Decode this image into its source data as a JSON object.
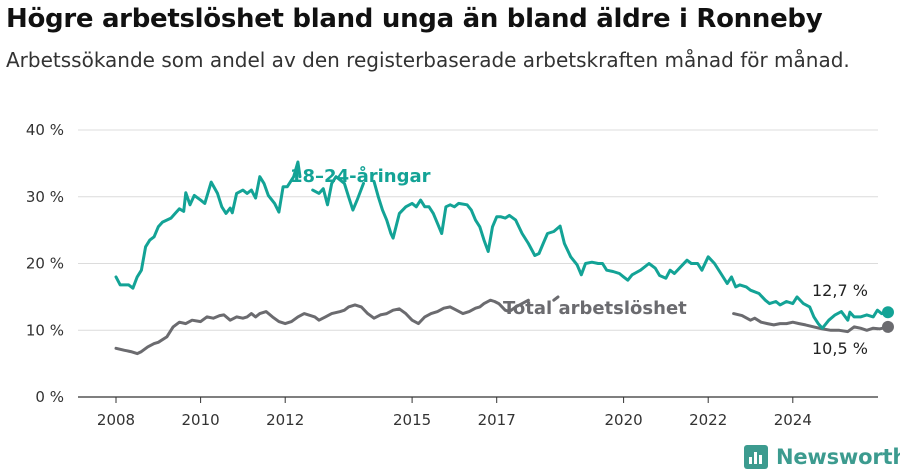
{
  "header": {
    "title": "Högre arbetslöshet bland unga än bland äldre i Ronneby",
    "subtitle": "Arbetssökande som andel av den registerbaserade arbetskraften månad för månad."
  },
  "brand": {
    "name": "Newsworthy",
    "color": "#3c9b8f",
    "icon": "bar-chart-icon"
  },
  "chart_data": {
    "type": "line",
    "ylim": [
      0,
      40
    ],
    "xlim": [
      2008,
      2025
    ],
    "y_ticks": [
      0,
      10,
      20,
      30,
      40
    ],
    "y_tick_labels": [
      "0 %",
      "10 %",
      "20 %",
      "30 %",
      "40 %"
    ],
    "x_ticks": [
      2008,
      2010,
      2012,
      2015,
      2017,
      2020,
      2022,
      2024
    ],
    "x_tick_labels": [
      "2008",
      "2010",
      "2012",
      "2015",
      "2017",
      "2020",
      "2022",
      "2024"
    ],
    "grid": true,
    "series": [
      {
        "name": "18–24-åringar",
        "color": "#13a396",
        "end_label": "12,7 %",
        "points": [
          [
            2008.0,
            18.0
          ],
          [
            2008.1,
            16.8
          ],
          [
            2008.3,
            16.8
          ],
          [
            2008.4,
            16.3
          ],
          [
            2008.5,
            18.0
          ],
          [
            2008.6,
            19.0
          ],
          [
            2008.7,
            22.5
          ],
          [
            2008.8,
            23.5
          ],
          [
            2008.9,
            24.0
          ],
          [
            2009.0,
            25.5
          ],
          [
            2009.1,
            26.2
          ],
          [
            2009.3,
            26.8
          ],
          [
            2009.4,
            27.5
          ],
          [
            2009.5,
            28.2
          ],
          [
            2009.6,
            27.8
          ],
          [
            2009.65,
            30.6
          ],
          [
            2009.75,
            28.8
          ],
          [
            2009.85,
            30.2
          ],
          [
            2010.0,
            29.5
          ],
          [
            2010.1,
            29.0
          ],
          [
            2010.25,
            32.2
          ],
          [
            2010.4,
            30.5
          ],
          [
            2010.5,
            28.5
          ],
          [
            2010.6,
            27.5
          ],
          [
            2010.7,
            28.3
          ],
          [
            2010.75,
            27.6
          ],
          [
            2010.85,
            30.5
          ],
          [
            2011.0,
            31.0
          ],
          [
            2011.1,
            30.5
          ],
          [
            2011.2,
            31.0
          ],
          [
            2011.3,
            29.8
          ],
          [
            2011.4,
            33.0
          ],
          [
            2011.5,
            32.0
          ],
          [
            2011.6,
            30.2
          ],
          [
            2011.75,
            29.0
          ],
          [
            2011.85,
            27.7
          ],
          [
            2011.95,
            31.5
          ],
          [
            2012.05,
            31.5
          ],
          [
            2012.2,
            33.0
          ],
          [
            2012.3,
            35.2
          ],
          [
            2012.35,
            33.0
          ]
        ],
        "points_2": [
          [
            2012.65,
            31.0
          ],
          [
            2012.8,
            30.5
          ],
          [
            2012.9,
            31.2
          ],
          [
            2013.0,
            28.8
          ],
          [
            2013.1,
            32.0
          ],
          [
            2013.2,
            33.0
          ],
          [
            2013.4,
            32.0
          ],
          [
            2013.5,
            30.0
          ],
          [
            2013.6,
            28.0
          ],
          [
            2013.7,
            29.5
          ],
          [
            2013.85,
            32.0
          ]
        ],
        "points_3": [
          [
            2014.1,
            32.3
          ],
          [
            2014.2,
            30.0
          ],
          [
            2014.3,
            28.0
          ],
          [
            2014.4,
            26.5
          ],
          [
            2014.5,
            24.5
          ],
          [
            2014.55,
            23.8
          ],
          [
            2014.7,
            27.5
          ],
          [
            2014.85,
            28.5
          ],
          [
            2015.0,
            29.0
          ],
          [
            2015.1,
            28.5
          ],
          [
            2015.2,
            29.5
          ],
          [
            2015.3,
            28.5
          ],
          [
            2015.4,
            28.5
          ],
          [
            2015.5,
            27.5
          ],
          [
            2015.6,
            26.0
          ],
          [
            2015.7,
            24.5
          ],
          [
            2015.8,
            28.5
          ],
          [
            2015.9,
            28.8
          ],
          [
            2016.0,
            28.5
          ],
          [
            2016.1,
            29.0
          ],
          [
            2016.3,
            28.8
          ],
          [
            2016.4,
            28.0
          ],
          [
            2016.5,
            26.5
          ],
          [
            2016.6,
            25.5
          ],
          [
            2016.7,
            23.5
          ],
          [
            2016.8,
            21.8
          ],
          [
            2016.9,
            25.5
          ],
          [
            2017.0,
            27.0
          ],
          [
            2017.1,
            27.0
          ],
          [
            2017.2,
            26.8
          ],
          [
            2017.3,
            27.2
          ],
          [
            2017.45,
            26.5
          ],
          [
            2017.6,
            24.5
          ],
          [
            2017.75,
            23.0
          ],
          [
            2017.9,
            21.2
          ],
          [
            2018.0,
            21.5
          ],
          [
            2018.1,
            23.0
          ],
          [
            2018.2,
            24.5
          ],
          [
            2018.35,
            24.8
          ],
          [
            2018.5,
            25.6
          ],
          [
            2018.6,
            23.0
          ],
          [
            2018.75,
            21.0
          ],
          [
            2018.9,
            19.8
          ],
          [
            2019.0,
            18.3
          ],
          [
            2019.1,
            20.0
          ],
          [
            2019.25,
            20.2
          ],
          [
            2019.4,
            20.0
          ],
          [
            2019.5,
            20.0
          ],
          [
            2019.6,
            19.0
          ],
          [
            2019.75,
            18.8
          ],
          [
            2019.9,
            18.5
          ],
          [
            2020.0,
            18.0
          ],
          [
            2020.1,
            17.5
          ],
          [
            2020.2,
            18.3
          ],
          [
            2020.4,
            19.0
          ],
          [
            2020.6,
            20.0
          ],
          [
            2020.75,
            19.3
          ],
          [
            2020.85,
            18.2
          ],
          [
            2021.0,
            17.8
          ],
          [
            2021.1,
            19.0
          ],
          [
            2021.2,
            18.5
          ],
          [
            2021.35,
            19.5
          ],
          [
            2021.5,
            20.5
          ],
          [
            2021.6,
            20.0
          ],
          [
            2021.75,
            20.0
          ],
          [
            2021.85,
            19.0
          ],
          [
            2022.0,
            21.0
          ],
          [
            2022.15,
            20.0
          ],
          [
            2022.3,
            18.5
          ],
          [
            2022.45,
            17.0
          ],
          [
            2022.55,
            18.0
          ],
          [
            2022.65,
            16.5
          ],
          [
            2022.75,
            16.8
          ],
          [
            2022.9,
            16.5
          ],
          [
            2023.0,
            16.0
          ],
          [
            2023.2,
            15.5
          ],
          [
            2023.35,
            14.5
          ],
          [
            2023.45,
            14.0
          ],
          [
            2023.6,
            14.3
          ],
          [
            2023.7,
            13.8
          ],
          [
            2023.85,
            14.3
          ],
          [
            2024.0,
            14.0
          ],
          [
            2024.1,
            15.0
          ],
          [
            2024.25,
            14.0
          ],
          [
            2024.4,
            13.5
          ],
          [
            2024.5,
            12.0
          ],
          [
            2024.6,
            11.0
          ],
          [
            2024.7,
            10.3
          ],
          [
            2024.85,
            11.5
          ],
          [
            2025.0,
            12.3
          ],
          [
            2025.15,
            12.8
          ],
          [
            2025.3,
            11.5
          ],
          [
            2025.35,
            12.7
          ],
          [
            2025.45,
            12.0
          ],
          [
            2025.6,
            12.0
          ],
          [
            2025.75,
            12.3
          ],
          [
            2025.9,
            12.0
          ],
          [
            2026.0,
            13.0
          ],
          [
            2026.1,
            12.5
          ],
          [
            2026.25,
            12.7
          ]
        ]
      },
      {
        "name": "Total arbetslöshet",
        "color": "#6b6b6f",
        "end_label": "10,5 %",
        "points": [
          [
            2008.0,
            7.3
          ],
          [
            2008.2,
            7.0
          ],
          [
            2008.35,
            6.8
          ],
          [
            2008.5,
            6.5
          ],
          [
            2008.6,
            6.8
          ],
          [
            2008.75,
            7.5
          ],
          [
            2008.9,
            8.0
          ],
          [
            2009.0,
            8.2
          ],
          [
            2009.2,
            9.0
          ],
          [
            2009.35,
            10.5
          ],
          [
            2009.5,
            11.2
          ],
          [
            2009.65,
            11.0
          ],
          [
            2009.8,
            11.5
          ],
          [
            2010.0,
            11.3
          ],
          [
            2010.15,
            12.0
          ],
          [
            2010.3,
            11.8
          ],
          [
            2010.45,
            12.2
          ],
          [
            2010.55,
            12.3
          ],
          [
            2010.7,
            11.5
          ],
          [
            2010.85,
            12.0
          ],
          [
            2011.0,
            11.8
          ],
          [
            2011.1,
            12.0
          ],
          [
            2011.2,
            12.5
          ],
          [
            2011.3,
            12.0
          ],
          [
            2011.4,
            12.5
          ],
          [
            2011.55,
            12.8
          ],
          [
            2011.7,
            12.0
          ],
          [
            2011.85,
            11.3
          ],
          [
            2012.0,
            11.0
          ],
          [
            2012.15,
            11.3
          ],
          [
            2012.3,
            12.0
          ],
          [
            2012.45,
            12.5
          ],
          [
            2012.55,
            12.3
          ],
          [
            2012.7,
            12.0
          ],
          [
            2012.8,
            11.5
          ],
          [
            2012.95,
            12.0
          ],
          [
            2013.1,
            12.5
          ],
          [
            2013.3,
            12.8
          ],
          [
            2013.4,
            13.0
          ],
          [
            2013.5,
            13.5
          ],
          [
            2013.65,
            13.8
          ],
          [
            2013.8,
            13.5
          ],
          [
            2013.95,
            12.5
          ],
          [
            2014.1,
            11.8
          ],
          [
            2014.25,
            12.3
          ],
          [
            2014.4,
            12.5
          ],
          [
            2014.55,
            13.0
          ],
          [
            2014.7,
            13.2
          ],
          [
            2014.85,
            12.5
          ],
          [
            2015.0,
            11.5
          ],
          [
            2015.15,
            11.0
          ],
          [
            2015.3,
            12.0
          ],
          [
            2015.45,
            12.5
          ],
          [
            2015.6,
            12.8
          ],
          [
            2015.75,
            13.3
          ],
          [
            2015.9,
            13.5
          ],
          [
            2016.05,
            13.0
          ],
          [
            2016.2,
            12.5
          ],
          [
            2016.35,
            12.8
          ],
          [
            2016.5,
            13.3
          ],
          [
            2016.6,
            13.5
          ],
          [
            2016.7,
            14.0
          ],
          [
            2016.85,
            14.5
          ],
          [
            2016.95,
            14.3
          ],
          [
            2017.05,
            14.0
          ],
          [
            2017.2,
            13.0
          ],
          [
            2017.3,
            12.8
          ],
          [
            2017.45,
            13.5
          ],
          [
            2017.6,
            14.0
          ],
          [
            2017.75,
            14.5
          ]
        ],
        "points_2": [
          [
            2018.35,
            14.5
          ],
          [
            2018.45,
            15.0
          ]
        ],
        "points_3": [
          [
            2022.6,
            12.5
          ],
          [
            2022.8,
            12.2
          ],
          [
            2023.0,
            11.5
          ],
          [
            2023.1,
            11.8
          ],
          [
            2023.25,
            11.2
          ],
          [
            2023.4,
            11.0
          ],
          [
            2023.55,
            10.8
          ],
          [
            2023.7,
            11.0
          ],
          [
            2023.85,
            11.0
          ],
          [
            2024.0,
            11.2
          ],
          [
            2024.15,
            11.0
          ],
          [
            2024.3,
            10.8
          ],
          [
            2024.5,
            10.5
          ],
          [
            2024.7,
            10.2
          ],
          [
            2024.9,
            10.0
          ],
          [
            2025.1,
            10.0
          ],
          [
            2025.3,
            9.8
          ],
          [
            2025.45,
            10.5
          ],
          [
            2025.6,
            10.3
          ],
          [
            2025.75,
            10.0
          ],
          [
            2025.9,
            10.3
          ],
          [
            2026.05,
            10.2
          ],
          [
            2026.25,
            10.5
          ]
        ]
      }
    ]
  }
}
